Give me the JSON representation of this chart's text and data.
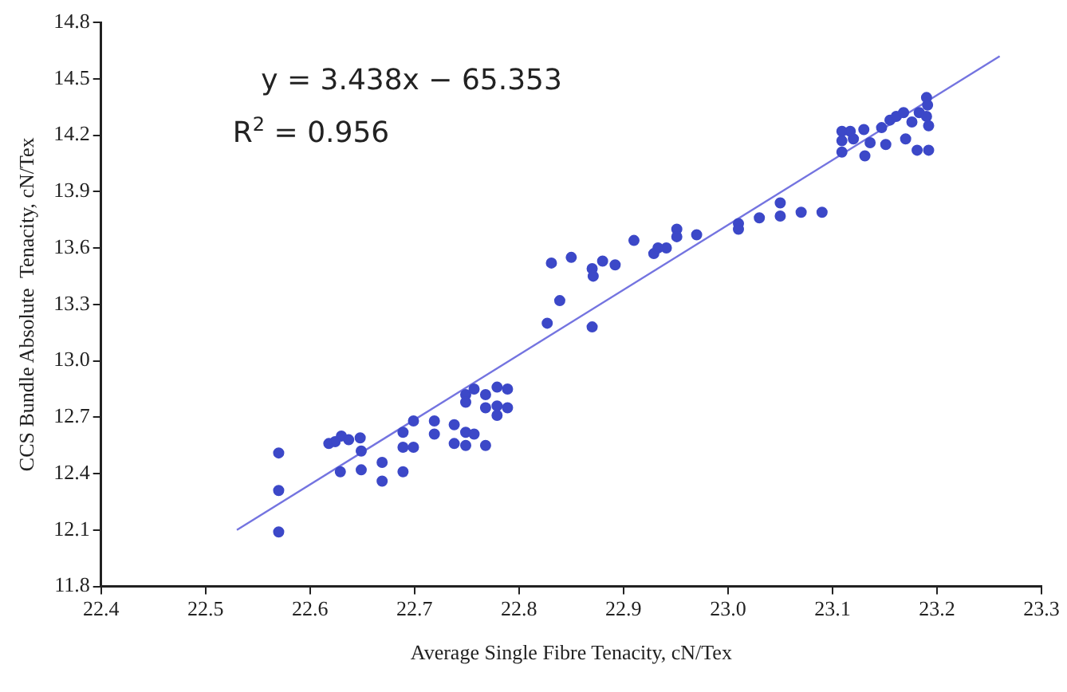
{
  "chart_data": {
    "type": "scatter",
    "xlabel": "Average Single Fibre Tenacity, cN/Tex",
    "ylabel": "CCS Bundle Absolute  Tenacity, cN/Tex",
    "annotations": [
      "y = 3.438x − 65.353",
      "R$^{2}$ = 0.956"
    ],
    "xlim": [
      22.4,
      23.3
    ],
    "xticks": [
      22.4,
      22.5,
      22.6,
      22.7,
      22.8,
      22.9,
      {
        "value": 23,
        "label": "23.0"
      },
      23.1,
      23.2,
      23.3
    ],
    "ylim": [
      11.8,
      14.8
    ],
    "yticks": [
      11.8,
      12.1,
      12.4,
      12.7,
      {
        "value": 13,
        "label": "13.0"
      },
      13.3,
      13.6,
      13.9,
      14.2,
      14.5,
      14.8
    ],
    "grid": false,
    "legend": false,
    "marker": "circle",
    "series": [
      {
        "color": "#3c48c8",
        "x": [
          22.57,
          22.57,
          22.57,
          22.618,
          22.624,
          22.63,
          22.637,
          22.648,
          22.649,
          22.629,
          22.649,
          22.669,
          22.669,
          22.689,
          22.689,
          22.689,
          22.699,
          22.699,
          22.719,
          22.719,
          22.738,
          22.738,
          22.749,
          22.749,
          22.749,
          22.749,
          22.757,
          22.757,
          22.768,
          22.768,
          22.768,
          22.779,
          22.779,
          22.779,
          22.789,
          22.789,
          22.827,
          22.831,
          22.85,
          22.839,
          22.87,
          22.87,
          22.871,
          22.88,
          22.892,
          22.91,
          22.929,
          22.933,
          22.941,
          22.951,
          22.951,
          22.97,
          23.01,
          23.01,
          23.03,
          23.05,
          23.05,
          23.07,
          23.09,
          23.109,
          23.109,
          23.109,
          23.117,
          23.12,
          23.13,
          23.131,
          23.136,
          23.147,
          23.151,
          23.155,
          23.161,
          23.168,
          23.17,
          23.176,
          23.181,
          23.183,
          23.19,
          23.191,
          23.192,
          23.192,
          23.19
        ],
        "values": [
          12.51,
          12.31,
          12.09,
          12.56,
          12.57,
          12.6,
          12.58,
          12.59,
          12.52,
          12.41,
          12.42,
          12.46,
          12.36,
          12.41,
          12.62,
          12.54,
          12.68,
          12.54,
          12.68,
          12.61,
          12.66,
          12.56,
          12.82,
          12.78,
          12.62,
          12.55,
          12.85,
          12.61,
          12.82,
          12.75,
          12.55,
          12.86,
          12.76,
          12.71,
          12.85,
          12.75,
          13.2,
          13.52,
          13.55,
          13.32,
          13.18,
          13.49,
          13.45,
          13.53,
          13.51,
          13.64,
          13.57,
          13.6,
          13.6,
          13.7,
          13.66,
          13.67,
          13.73,
          13.7,
          13.76,
          13.84,
          13.77,
          13.79,
          13.79,
          14.22,
          14.17,
          14.11,
          14.22,
          14.18,
          14.23,
          14.09,
          14.16,
          14.24,
          14.15,
          14.28,
          14.3,
          14.32,
          14.18,
          14.27,
          14.12,
          14.32,
          14.4,
          14.36,
          14.25,
          14.12,
          14.3
        ]
      },
      {
        "type": "line",
        "color": "#7474e0",
        "line_style": "solid",
        "marker": "none",
        "x": [
          22.53,
          23.26
        ],
        "values": [
          12.1,
          14.62
        ]
      }
    ]
  }
}
